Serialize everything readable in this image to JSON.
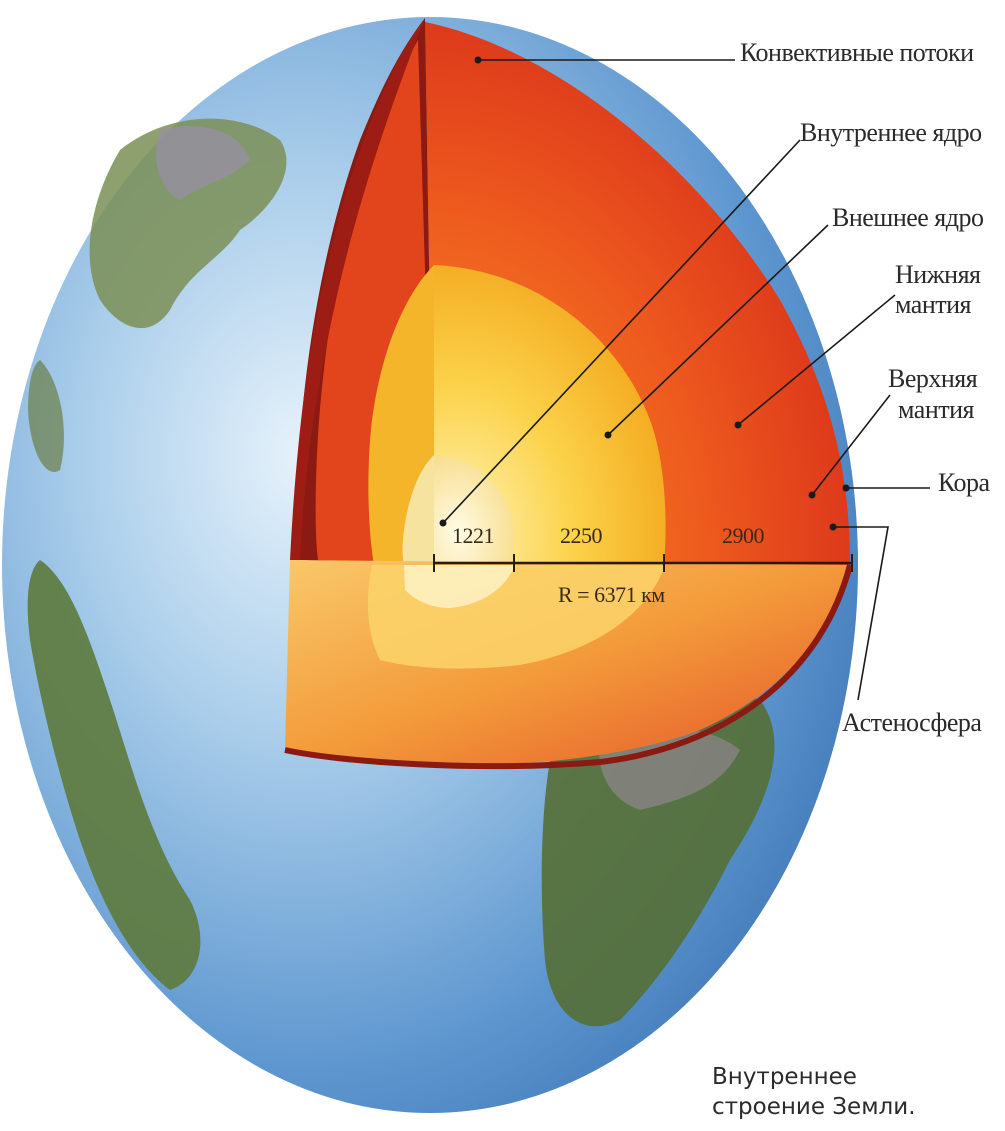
{
  "labels": {
    "convective": "Конвективные потоки",
    "inner_core": "Внутреннее ядро",
    "outer_core": "Внешнее ядро",
    "lower_mantle_1": "Нижняя",
    "lower_mantle_2": "мантия",
    "upper_mantle_1": "Верхняя",
    "upper_mantle_2": "мантия",
    "crust": "Кора",
    "asthenosphere": "Астеносфера"
  },
  "measures": {
    "inner_core_km": "1221",
    "outer_core_km": "2250",
    "mantle_km": "2900",
    "radius": "R = 6371 км"
  },
  "caption": {
    "line1": "Внутреннее",
    "line2": "строение Земли."
  },
  "colors": {
    "ocean": "#6fa3d6",
    "land": "#5a7a3a",
    "crust": "#8a1a12",
    "mantle": "#e8401c",
    "outer_core": "#f4b21c",
    "inner_core": "#f8e79a",
    "leader_line": "#1a1a1a"
  }
}
